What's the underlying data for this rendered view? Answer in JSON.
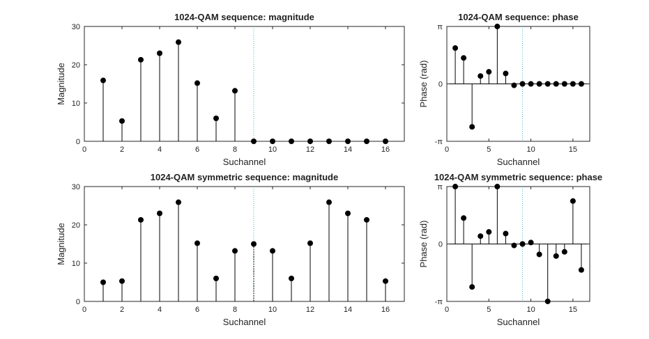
{
  "chart_data": [
    {
      "type": "stem",
      "title": "1024-QAM sequence: magnitude",
      "xlabel": "Suchannel",
      "ylabel": "Magnitude",
      "xlim": [
        0,
        17
      ],
      "ylim": [
        0,
        30
      ],
      "xticks": [
        "0",
        "2",
        "4",
        "6",
        "8",
        "10",
        "12",
        "14",
        "16"
      ],
      "yticks": [
        "0",
        "10",
        "20",
        "30"
      ],
      "marker_line": 9,
      "series": [
        {
          "x": [
            1,
            2,
            3,
            4,
            5,
            6,
            7,
            8,
            9,
            10,
            11,
            12,
            13,
            14,
            15,
            16
          ],
          "values": [
            15.9,
            5.3,
            21.3,
            23.0,
            25.9,
            15.2,
            6.0,
            13.2,
            0,
            0,
            0,
            0,
            0,
            0,
            0,
            0
          ]
        }
      ]
    },
    {
      "type": "stem",
      "title": "1024-QAM sequence: phase",
      "xlabel": "Suchannel",
      "ylabel": "Phase (rad)",
      "xlim": [
        0,
        17
      ],
      "ylim": [
        -3.1416,
        3.1416
      ],
      "xticks": [
        "0",
        "5",
        "10",
        "15"
      ],
      "yticks": [
        "-π",
        "0",
        "π"
      ],
      "marker_line": 9,
      "series": [
        {
          "x": [
            1,
            2,
            3,
            4,
            5,
            6,
            7,
            8,
            9,
            10,
            11,
            12,
            13,
            14,
            15,
            16
          ],
          "values": [
            1.96,
            1.42,
            -2.35,
            0.43,
            0.66,
            3.14,
            0.57,
            -0.08,
            0,
            0,
            0,
            0,
            0,
            0,
            0,
            0
          ]
        }
      ]
    },
    {
      "type": "stem",
      "title": "1024-QAM symmetric sequence: magnitude",
      "xlabel": "Suchannel",
      "ylabel": "Magnitude",
      "xlim": [
        0,
        17
      ],
      "ylim": [
        0,
        30
      ],
      "xticks": [
        "0",
        "2",
        "4",
        "6",
        "8",
        "10",
        "12",
        "14",
        "16"
      ],
      "yticks": [
        "0",
        "10",
        "20",
        "30"
      ],
      "marker_line": 9,
      "series": [
        {
          "x": [
            1,
            2,
            3,
            4,
            5,
            6,
            7,
            8,
            9,
            10,
            11,
            12,
            13,
            14,
            15,
            16
          ],
          "values": [
            5.0,
            5.3,
            21.3,
            23.0,
            25.9,
            15.2,
            6.0,
            13.2,
            15.0,
            13.2,
            6.0,
            15.2,
            25.9,
            23.0,
            21.3,
            5.3
          ]
        }
      ]
    },
    {
      "type": "stem",
      "title": "1024-QAM symmetric sequence: phase",
      "xlabel": "Suchannel",
      "ylabel": "Phase (rad)",
      "xlim": [
        0,
        17
      ],
      "ylim": [
        -3.1416,
        3.1416
      ],
      "xticks": [
        "0",
        "5",
        "10",
        "15"
      ],
      "yticks": [
        "-π",
        "0",
        "π"
      ],
      "marker_line": 9,
      "series": [
        {
          "x": [
            1,
            2,
            3,
            4,
            5,
            6,
            7,
            8,
            9,
            10,
            11,
            12,
            13,
            14,
            15,
            16
          ],
          "values": [
            3.14,
            1.42,
            -2.35,
            0.43,
            0.66,
            3.14,
            0.57,
            -0.08,
            0,
            0.08,
            -0.57,
            -3.14,
            -0.66,
            -0.43,
            2.35,
            -1.42
          ]
        }
      ]
    }
  ]
}
